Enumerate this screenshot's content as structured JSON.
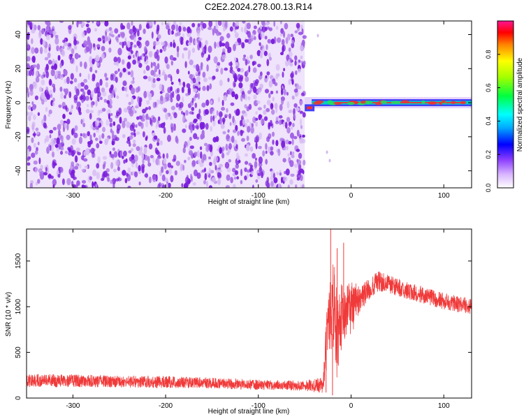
{
  "page": {
    "title": "C2E2.2024.278.00.13.R14"
  },
  "chart_data": [
    {
      "type": "heatmap",
      "xlabel": "Height of straight line (km)",
      "ylabel": "Frequency (Hz)",
      "xlim": [
        -350,
        130
      ],
      "ylim": [
        -50,
        48
      ],
      "xticks": [
        -300,
        -200,
        -100,
        0,
        100
      ],
      "yticks": [
        -40,
        -20,
        0,
        20,
        40
      ],
      "noise_region_x": [
        -350,
        -50
      ],
      "carrier_region_x": [
        -50,
        130
      ],
      "carrier_frequency": 0,
      "carrier_frequency_start": -3,
      "colorbar": {
        "label": "Normalized spectral amplitude",
        "range": [
          0,
          1
        ],
        "ticks": [
          0.0,
          0.2,
          0.4,
          0.6,
          0.8
        ]
      },
      "colors": {
        "noise_dark": "#7a1cdc",
        "noise_mid": "#a86ee6",
        "noise_light": "#d4b8f2",
        "carrier_low": "#4040ff",
        "carrier_mid": "#00d0c0",
        "carrier_high": "#f03030"
      }
    },
    {
      "type": "line",
      "xlabel": "Height of straight line (km)",
      "ylabel": "SNR (10 * v/v)",
      "xlim": [
        -350,
        130
      ],
      "ylim": [
        0,
        1850
      ],
      "xticks": [
        -300,
        -200,
        -100,
        0,
        100
      ],
      "yticks": [
        0,
        500,
        1000,
        1500
      ],
      "color": "#f03a3a",
      "envelope": {
        "x": [
          -350,
          -300,
          -250,
          -200,
          -150,
          -100,
          -50,
          -30,
          -25,
          -20,
          -15,
          -10,
          0,
          10,
          20,
          30,
          40,
          60,
          80,
          100,
          130
        ],
        "mean": [
          190,
          190,
          180,
          175,
          165,
          145,
          135,
          140,
          820,
          1080,
          700,
          900,
          980,
          1100,
          1200,
          1280,
          1250,
          1180,
          1120,
          1060,
          1000
        ],
        "spread": [
          70,
          70,
          65,
          65,
          60,
          55,
          55,
          90,
          400,
          500,
          500,
          350,
          300,
          150,
          120,
          110,
          100,
          95,
          90,
          90,
          90
        ]
      },
      "spikes": [
        {
          "x": -22,
          "y": 1850
        },
        {
          "x": -15,
          "y": 1640
        },
        {
          "x": -8,
          "y": 1700
        },
        {
          "x": -20,
          "y": 30
        },
        {
          "x": -27,
          "y": 60
        }
      ]
    }
  ]
}
